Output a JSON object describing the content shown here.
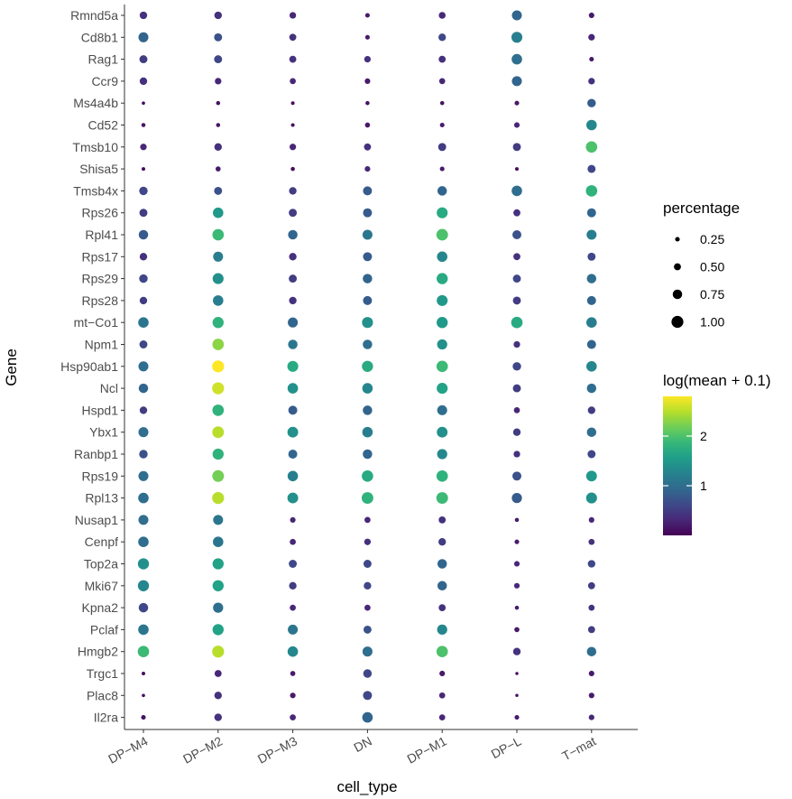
{
  "chart_data": {
    "type": "dotplot",
    "xlabel": "cell_type",
    "ylabel": "Gene",
    "x_categories": [
      "DP−M4",
      "DP−M2",
      "DP−M3",
      "DN",
      "DP−M1",
      "DP−L",
      "T−mat"
    ],
    "genes": [
      {
        "name": "Rmnd5a",
        "pct": [
          0.55,
          0.55,
          0.45,
          0.25,
          0.48,
          0.8,
          0.35
        ],
        "mean": [
          0.4,
          0.4,
          0.3,
          0.2,
          0.3,
          0.9,
          0.2
        ]
      },
      {
        "name": "Cd8b1",
        "pct": [
          0.8,
          0.6,
          0.5,
          0.25,
          0.55,
          0.9,
          0.45
        ],
        "mean": [
          0.9,
          0.7,
          0.4,
          0.2,
          0.6,
          1.2,
          0.3
        ]
      },
      {
        "name": "Rag1",
        "pct": [
          0.6,
          0.6,
          0.5,
          0.45,
          0.5,
          0.85,
          0.25
        ],
        "mean": [
          0.5,
          0.6,
          0.4,
          0.4,
          0.4,
          1.0,
          0.2
        ]
      },
      {
        "name": "Ccr9",
        "pct": [
          0.55,
          0.45,
          0.4,
          0.35,
          0.4,
          0.8,
          0.45
        ],
        "mean": [
          0.4,
          0.3,
          0.3,
          0.2,
          0.3,
          0.9,
          0.4
        ]
      },
      {
        "name": "Ms4a4b",
        "pct": [
          0.12,
          0.2,
          0.15,
          0.2,
          0.2,
          0.25,
          0.65
        ],
        "mean": [
          0.1,
          0.15,
          0.1,
          0.15,
          0.15,
          0.2,
          0.8
        ]
      },
      {
        "name": "Cd52",
        "pct": [
          0.2,
          0.2,
          0.15,
          0.3,
          0.25,
          0.35,
          0.85
        ],
        "mean": [
          0.15,
          0.15,
          0.1,
          0.2,
          0.2,
          0.3,
          1.3
        ]
      },
      {
        "name": "Tmsb10",
        "pct": [
          0.45,
          0.55,
          0.45,
          0.5,
          0.6,
          0.6,
          0.95
        ],
        "mean": [
          0.3,
          0.4,
          0.3,
          0.4,
          0.5,
          0.5,
          2.0
        ]
      },
      {
        "name": "Shisa5",
        "pct": [
          0.15,
          0.3,
          0.2,
          0.35,
          0.25,
          0.15,
          0.6
        ],
        "mean": [
          0.1,
          0.2,
          0.1,
          0.3,
          0.2,
          0.1,
          0.6
        ]
      },
      {
        "name": "Tmsb4x",
        "pct": [
          0.65,
          0.6,
          0.55,
          0.7,
          0.75,
          0.85,
          0.95
        ],
        "mean": [
          0.6,
          0.7,
          0.5,
          0.8,
          0.9,
          1.0,
          1.8
        ]
      },
      {
        "name": "Rps26",
        "pct": [
          0.6,
          0.85,
          0.6,
          0.7,
          0.9,
          0.5,
          0.7
        ],
        "mean": [
          0.5,
          1.5,
          0.5,
          0.8,
          1.7,
          0.4,
          0.9
        ]
      },
      {
        "name": "Rpl41",
        "pct": [
          0.75,
          0.95,
          0.75,
          0.8,
          0.97,
          0.7,
          0.8
        ],
        "mean": [
          0.8,
          1.9,
          0.9,
          1.1,
          2.0,
          0.7,
          1.2
        ]
      },
      {
        "name": "Rps17",
        "pct": [
          0.55,
          0.8,
          0.55,
          0.7,
          0.85,
          0.5,
          0.6
        ],
        "mean": [
          0.4,
          1.2,
          0.4,
          0.8,
          1.3,
          0.4,
          0.6
        ]
      },
      {
        "name": "Rps29",
        "pct": [
          0.65,
          0.9,
          0.6,
          0.75,
          0.92,
          0.6,
          0.75
        ],
        "mean": [
          0.6,
          1.4,
          0.5,
          0.9,
          1.7,
          0.6,
          1.0
        ]
      },
      {
        "name": "Rps28",
        "pct": [
          0.55,
          0.85,
          0.55,
          0.7,
          0.9,
          0.6,
          0.7
        ],
        "mean": [
          0.5,
          1.2,
          0.4,
          0.8,
          1.5,
          0.5,
          0.9
        ]
      },
      {
        "name": "mt−Co1",
        "pct": [
          0.85,
          0.92,
          0.8,
          0.9,
          0.92,
          0.95,
          0.85
        ],
        "mean": [
          1.1,
          1.8,
          0.9,
          1.4,
          1.5,
          1.7,
          1.2
        ]
      },
      {
        "name": "Npm1",
        "pct": [
          0.6,
          0.95,
          0.75,
          0.75,
          0.82,
          0.45,
          0.7
        ],
        "mean": [
          0.6,
          2.3,
          1.1,
          1.0,
          1.4,
          0.4,
          0.9
        ]
      },
      {
        "name": "Hsp90ab1",
        "pct": [
          0.8,
          1.0,
          0.9,
          0.92,
          0.95,
          0.65,
          0.85
        ],
        "mean": [
          1.0,
          2.8,
          1.7,
          1.7,
          1.9,
          0.6,
          1.3
        ]
      },
      {
        "name": "Ncl",
        "pct": [
          0.75,
          1.0,
          0.85,
          0.85,
          0.9,
          0.6,
          0.75
        ],
        "mean": [
          0.9,
          2.6,
          1.4,
          1.3,
          1.6,
          0.5,
          1.0
        ]
      },
      {
        "name": "Hspd1",
        "pct": [
          0.55,
          0.95,
          0.7,
          0.75,
          0.8,
          0.4,
          0.55
        ],
        "mean": [
          0.5,
          1.8,
          0.8,
          0.9,
          1.0,
          0.3,
          0.5
        ]
      },
      {
        "name": "Ybx1",
        "pct": [
          0.8,
          0.98,
          0.88,
          0.85,
          0.88,
          0.55,
          0.75
        ],
        "mean": [
          1.0,
          2.5,
          1.4,
          1.2,
          1.4,
          0.5,
          1.0
        ]
      },
      {
        "name": "Ranbp1",
        "pct": [
          0.65,
          0.92,
          0.7,
          0.75,
          0.82,
          0.45,
          0.6
        ],
        "mean": [
          0.7,
          1.8,
          0.9,
          0.9,
          1.3,
          0.4,
          0.6
        ]
      },
      {
        "name": "Rps19",
        "pct": [
          0.8,
          0.98,
          0.85,
          0.95,
          0.95,
          0.7,
          0.88
        ],
        "mean": [
          1.0,
          2.2,
          1.2,
          1.7,
          1.8,
          0.7,
          1.5
        ]
      },
      {
        "name": "Rpl13",
        "pct": [
          0.85,
          1.0,
          0.88,
          0.97,
          0.97,
          0.82,
          0.9
        ],
        "mean": [
          1.0,
          2.5,
          1.4,
          1.8,
          1.9,
          0.8,
          1.4
        ]
      },
      {
        "name": "Nusap1",
        "pct": [
          0.8,
          0.8,
          0.35,
          0.4,
          0.5,
          0.2,
          0.35
        ],
        "mean": [
          1.0,
          1.1,
          0.3,
          0.3,
          0.4,
          0.2,
          0.3
        ]
      },
      {
        "name": "Cenpf",
        "pct": [
          0.85,
          0.85,
          0.4,
          0.45,
          0.55,
          0.25,
          0.4
        ],
        "mean": [
          1.0,
          1.1,
          0.3,
          0.4,
          0.5,
          0.2,
          0.4
        ]
      },
      {
        "name": "Top2a",
        "pct": [
          0.92,
          0.92,
          0.6,
          0.6,
          0.75,
          0.35,
          0.55
        ],
        "mean": [
          1.4,
          1.6,
          0.6,
          0.6,
          0.9,
          0.3,
          0.6
        ]
      },
      {
        "name": "Mki67",
        "pct": [
          0.92,
          0.92,
          0.55,
          0.55,
          0.75,
          0.35,
          0.5
        ],
        "mean": [
          1.3,
          1.6,
          0.5,
          0.6,
          0.9,
          0.3,
          0.5
        ]
      },
      {
        "name": "Kpna2",
        "pct": [
          0.75,
          0.82,
          0.4,
          0.4,
          0.5,
          0.2,
          0.4
        ],
        "mean": [
          0.6,
          1.0,
          0.3,
          0.3,
          0.4,
          0.2,
          0.4
        ]
      },
      {
        "name": "Pclaf",
        "pct": [
          0.85,
          0.92,
          0.8,
          0.6,
          0.82,
          0.3,
          0.5
        ],
        "mean": [
          1.1,
          1.6,
          1.1,
          0.7,
          1.3,
          0.2,
          0.5
        ]
      },
      {
        "name": "Hmgb2",
        "pct": [
          0.95,
          1.0,
          0.85,
          0.8,
          0.95,
          0.55,
          0.75
        ],
        "mean": [
          1.9,
          2.5,
          1.3,
          1.0,
          2.0,
          0.4,
          1.0
        ]
      },
      {
        "name": "Trgc1",
        "pct": [
          0.15,
          0.5,
          0.3,
          0.65,
          0.35,
          0.1,
          0.35
        ],
        "mean": [
          0.1,
          0.3,
          0.2,
          0.6,
          0.2,
          0.1,
          0.2
        ]
      },
      {
        "name": "Plac8",
        "pct": [
          0.12,
          0.55,
          0.35,
          0.7,
          0.4,
          0.1,
          0.35
        ],
        "mean": [
          0.1,
          0.4,
          0.2,
          0.6,
          0.3,
          0.1,
          0.2
        ]
      },
      {
        "name": "Il2ra",
        "pct": [
          0.25,
          0.55,
          0.4,
          0.85,
          0.4,
          0.25,
          0.35
        ],
        "mean": [
          0.15,
          0.4,
          0.3,
          0.9,
          0.3,
          0.2,
          0.3
        ]
      }
    ],
    "size_legend": {
      "title": "percentage",
      "breaks": [
        0.25,
        0.5,
        0.75,
        1.0
      ],
      "labels": [
        "0.25",
        "0.50",
        "0.75",
        "1.00"
      ]
    },
    "color_legend": {
      "title": "log(mean + 0.1)",
      "range": [
        0.0,
        2.8
      ],
      "breaks": [
        1,
        2
      ],
      "labels": [
        "1",
        "2"
      ],
      "palette": "viridis"
    },
    "grid": false,
    "legend_position": "right"
  },
  "colors": {
    "viridis": [
      "#440154",
      "#482878",
      "#3e4989",
      "#31688e",
      "#26828e",
      "#1f9e89",
      "#35b779",
      "#6ece58",
      "#b5de2b",
      "#fde725"
    ],
    "axis": "#4d4d4d",
    "background": "#ffffff"
  }
}
